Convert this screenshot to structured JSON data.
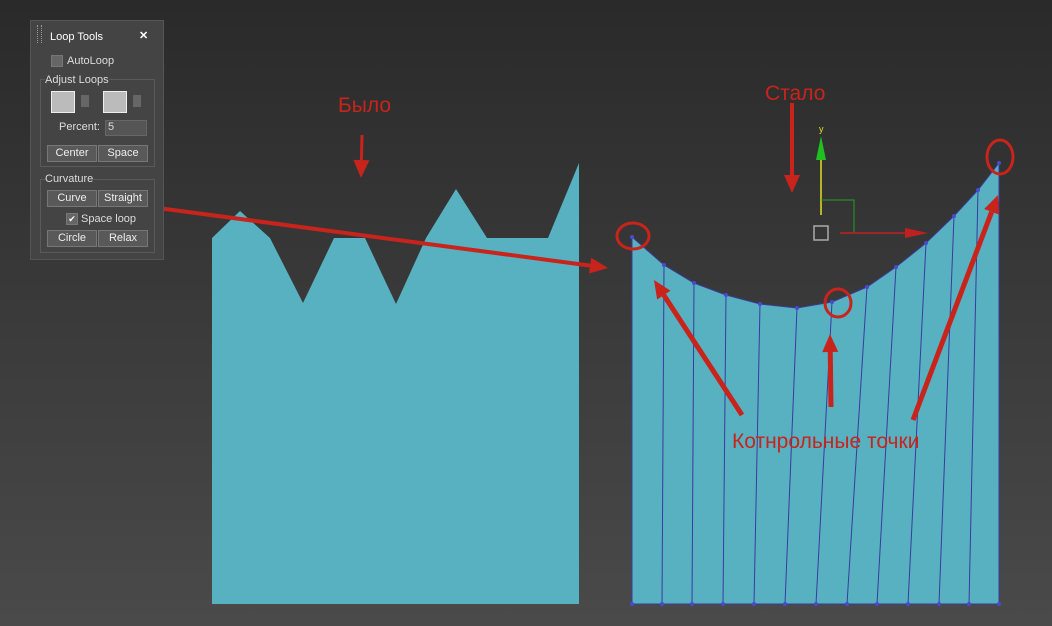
{
  "panel": {
    "title": "Loop Tools",
    "close": "✕",
    "autoloop": "AutoLoop",
    "adjust_loops": {
      "title": "Adjust Loops",
      "percent_label": "Percent:",
      "percent_value": "5",
      "buttons": [
        "Center",
        "Space"
      ]
    },
    "curvature": {
      "title": "Curvature",
      "buttons": [
        "Curve",
        "Straight"
      ],
      "space_loop": "Space loop",
      "buttons2": [
        "Circle",
        "Relax"
      ]
    }
  },
  "annotations": {
    "before": "Было",
    "after": "Стало",
    "control_points": "Котнрольные точки"
  },
  "gizmo": {
    "y_axis": "y"
  }
}
